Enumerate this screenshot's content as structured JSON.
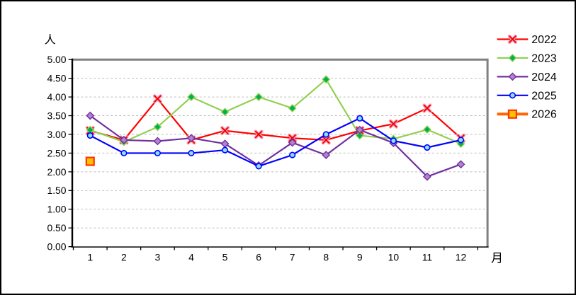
{
  "chart_data": {
    "type": "line",
    "title": "",
    "ylabel": "人",
    "xlabel": "月",
    "xticks": [
      "1",
      "2",
      "3",
      "4",
      "5",
      "6",
      "7",
      "8",
      "9",
      "10",
      "11",
      "12"
    ],
    "yticks": [
      "0.00",
      "0.50",
      "1.00",
      "1.50",
      "2.00",
      "2.50",
      "3.00",
      "3.50",
      "4.00",
      "4.50",
      "5.00"
    ],
    "ylim": [
      0,
      5
    ],
    "ytick_step": 0.5,
    "grid": "horizontal-dashed",
    "gridline_color": "#bdbdbd",
    "plot_border_color": "#808080",
    "axis_color": "#000000",
    "legend_position": "right",
    "series": [
      {
        "name": "2022",
        "color": "#ff0000",
        "marker": "x",
        "marker_fill": "#e60000",
        "marker_halo": "#ff9db4",
        "line_width": 2.2,
        "values": [
          3.1,
          2.85,
          3.95,
          2.85,
          3.1,
          3.0,
          2.9,
          2.85,
          3.1,
          3.28,
          3.7,
          2.9
        ]
      },
      {
        "name": "2023",
        "color": "#92d050",
        "marker": "diamond",
        "marker_fill": "#00b050",
        "marker_stroke": "#92d050",
        "line_width": 2.2,
        "values": [
          3.12,
          2.8,
          3.2,
          4.0,
          3.6,
          4.0,
          3.7,
          4.47,
          2.97,
          2.88,
          3.13,
          2.75
        ]
      },
      {
        "name": "2024",
        "color": "#7030a0",
        "marker": "diamond",
        "marker_fill": "#b083cb",
        "marker_stroke": "#7030a0",
        "line_width": 2.2,
        "values": [
          3.5,
          2.85,
          2.82,
          2.9,
          2.75,
          2.17,
          2.78,
          2.45,
          3.12,
          2.77,
          1.87,
          2.2
        ]
      },
      {
        "name": "2025",
        "color": "#0000ff",
        "marker": "circle",
        "marker_fill": "#8ce0ff",
        "marker_stroke": "#0000ff",
        "line_width": 2.2,
        "values": [
          2.97,
          2.5,
          2.5,
          2.5,
          2.58,
          2.15,
          2.45,
          3.0,
          3.43,
          2.83,
          2.65,
          2.85
        ]
      },
      {
        "name": "2026",
        "color": "#ff6600",
        "marker": "square",
        "marker_fill": "#ffc000",
        "marker_stroke": "#ff3300",
        "line_width": 4,
        "values": [
          2.28,
          null,
          null,
          null,
          null,
          null,
          null,
          null,
          null,
          null,
          null,
          null
        ]
      }
    ]
  }
}
